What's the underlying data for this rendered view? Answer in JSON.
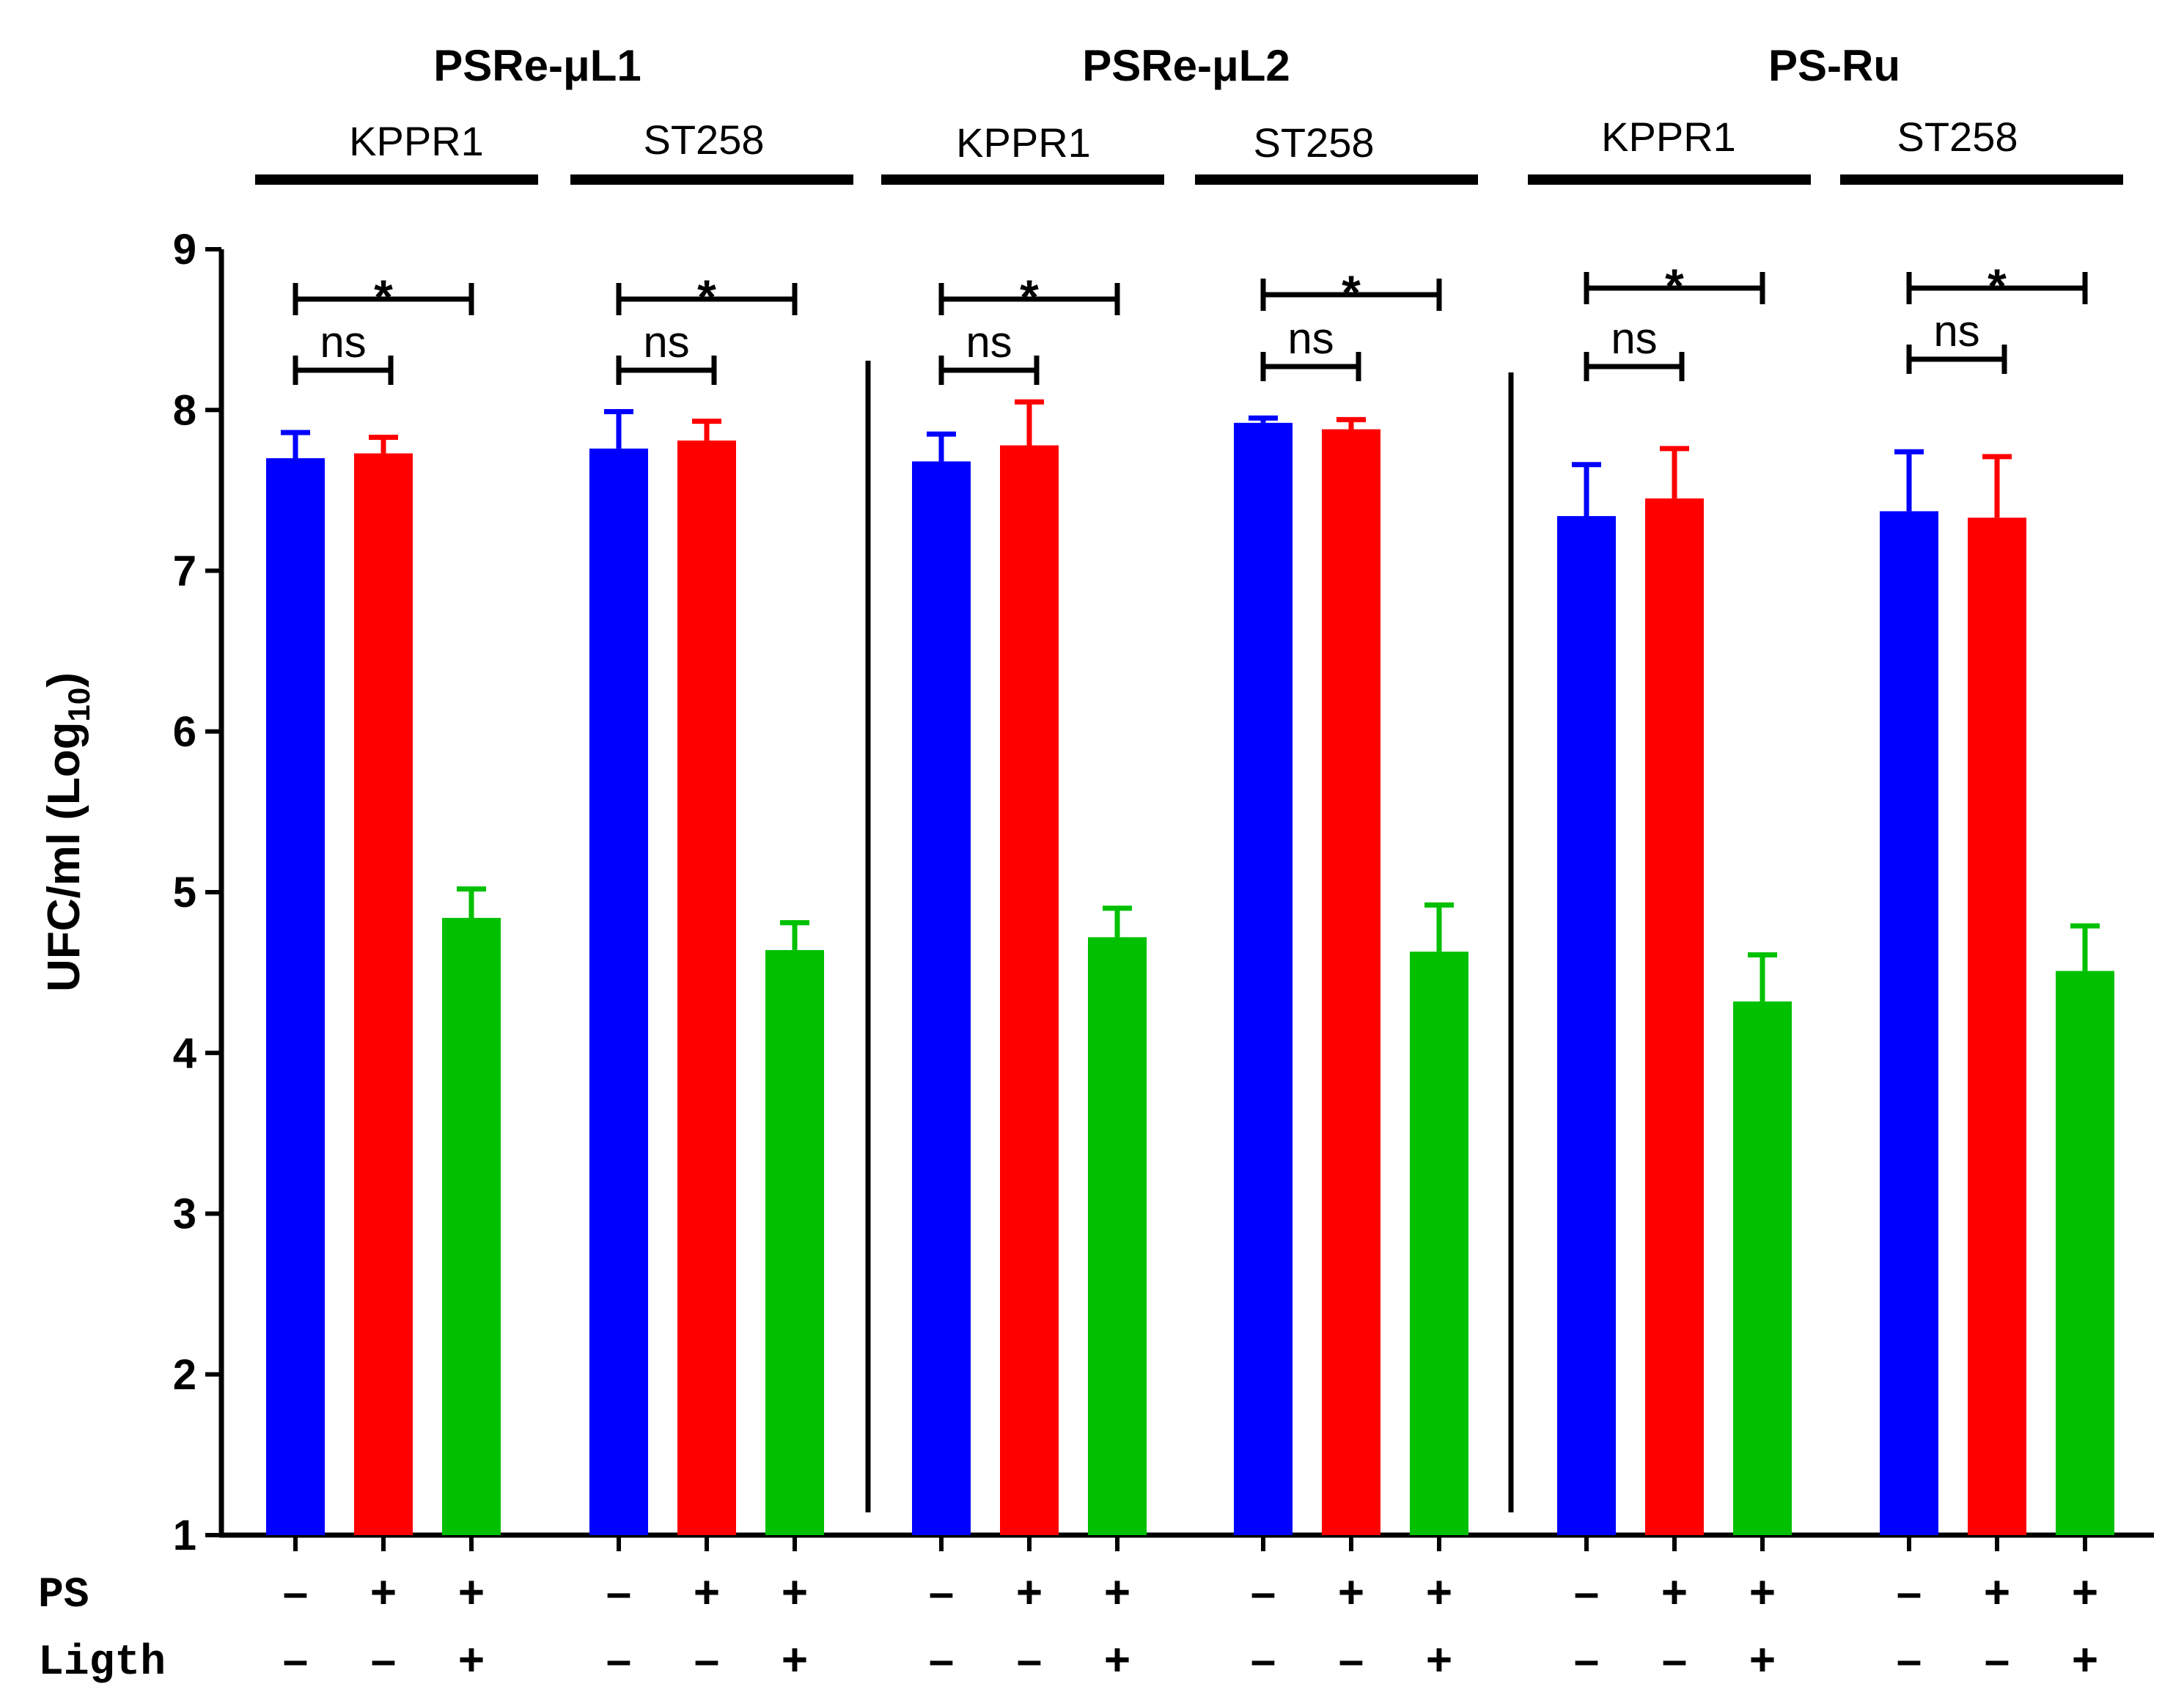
{
  "chart_data": {
    "type": "bar",
    "ylabel_main": "UFC/ml (Log",
    "ylabel_sub": "10",
    "ylabel_close": ")",
    "ylim": [
      1,
      9
    ],
    "yticks": [
      "1",
      "2",
      "3",
      "4",
      "5",
      "6",
      "7",
      "8",
      "9"
    ],
    "row_labels": {
      "ps": "PS",
      "light": "Ligth"
    },
    "colors": {
      "ps_minus_dark": "#0000ff",
      "ps_plus_dark": "#ff0000",
      "ps_plus_light": "#00c000"
    },
    "groups": [
      {
        "name": "PSRe-μL1",
        "strains": [
          {
            "name": "KPPR1",
            "bars": [
              {
                "value": 7.7,
                "error": 0.16,
                "ps": "–",
                "light": "–"
              },
              {
                "value": 7.73,
                "error": 0.1,
                "ps": "+",
                "light": "–"
              },
              {
                "value": 4.84,
                "error": 0.18,
                "ps": "+",
                "light": "+"
              }
            ],
            "sig_outer": "*",
            "sig_inner": "ns"
          },
          {
            "name": "ST258",
            "bars": [
              {
                "value": 7.76,
                "error": 0.23,
                "ps": "–",
                "light": "–"
              },
              {
                "value": 7.81,
                "error": 0.12,
                "ps": "+",
                "light": "–"
              },
              {
                "value": 4.64,
                "error": 0.17,
                "ps": "+",
                "light": "+"
              }
            ],
            "sig_outer": "*",
            "sig_inner": "ns"
          }
        ]
      },
      {
        "name": "PSRe-μL2",
        "strains": [
          {
            "name": "KPPR1",
            "bars": [
              {
                "value": 7.68,
                "error": 0.17,
                "ps": "–",
                "light": "–"
              },
              {
                "value": 7.78,
                "error": 0.27,
                "ps": "+",
                "light": "–"
              },
              {
                "value": 4.72,
                "error": 0.18,
                "ps": "+",
                "light": "+"
              }
            ],
            "sig_outer": "*",
            "sig_inner": "ns"
          },
          {
            "name": "ST258",
            "bars": [
              {
                "value": 7.92,
                "error": 0.03,
                "ps": "–",
                "light": "–"
              },
              {
                "value": 7.88,
                "error": 0.06,
                "ps": "+",
                "light": "–"
              },
              {
                "value": 4.63,
                "error": 0.29,
                "ps": "+",
                "light": "+"
              }
            ],
            "sig_outer": "*",
            "sig_inner": "ns"
          }
        ]
      },
      {
        "name": "PS-Ru",
        "strains": [
          {
            "name": "KPPR1",
            "bars": [
              {
                "value": 7.34,
                "error": 0.32,
                "ps": "–",
                "light": "–"
              },
              {
                "value": 7.45,
                "error": 0.31,
                "ps": "+",
                "light": "–"
              },
              {
                "value": 4.32,
                "error": 0.29,
                "ps": "+",
                "light": "+"
              }
            ],
            "sig_outer": "*",
            "sig_inner": "ns"
          },
          {
            "name": "ST258",
            "bars": [
              {
                "value": 7.37,
                "error": 0.37,
                "ps": "–",
                "light": "–"
              },
              {
                "value": 7.33,
                "error": 0.38,
                "ps": "+",
                "light": "–"
              },
              {
                "value": 4.51,
                "error": 0.28,
                "ps": "+",
                "light": "+"
              }
            ],
            "sig_outer": "*",
            "sig_inner": "ns"
          }
        ]
      }
    ]
  }
}
